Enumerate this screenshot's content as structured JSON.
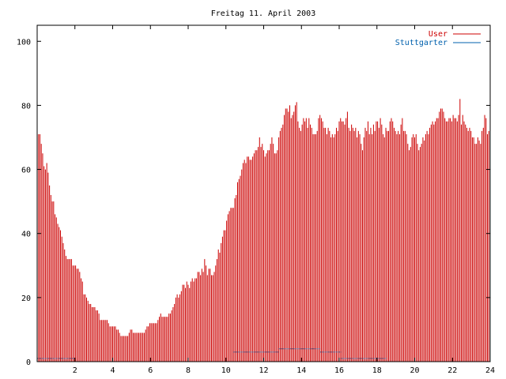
{
  "chart_data": {
    "type": "bar",
    "title": "Freitag 11. April 2003",
    "xlabel": "",
    "ylabel": "",
    "xlim": [
      0,
      24
    ],
    "ylim": [
      0,
      105
    ],
    "x_ticks": [
      2,
      4,
      6,
      8,
      10,
      12,
      14,
      16,
      18,
      20,
      22,
      24
    ],
    "y_ticks": [
      0,
      20,
      40,
      60,
      80,
      100
    ],
    "grid": false,
    "legend_position": "top-right",
    "colors": {
      "User": "#cc0000",
      "Stuttgarter": "#0060ad"
    },
    "series": [
      {
        "name": "User",
        "values": [
          76,
          71,
          71,
          68,
          65,
          61,
          60,
          62,
          59,
          55,
          52,
          50,
          50,
          46,
          45,
          43,
          42,
          41,
          39,
          37,
          35,
          33,
          32,
          32,
          32,
          32,
          30,
          30,
          30,
          29,
          29,
          28,
          26,
          25,
          21,
          21,
          20,
          19,
          18,
          18,
          17,
          17,
          17,
          16,
          16,
          15,
          13,
          13,
          13,
          13,
          13,
          13,
          12,
          11,
          11,
          11,
          11,
          11,
          10,
          10,
          9,
          8,
          8,
          8,
          8,
          8,
          8,
          9,
          10,
          10,
          9,
          9,
          9,
          9,
          9,
          9,
          9,
          9,
          9,
          10,
          11,
          11,
          12,
          12,
          12,
          12,
          12,
          12,
          13,
          14,
          15,
          14,
          14,
          14,
          14,
          14,
          15,
          15,
          16,
          17,
          18,
          20,
          21,
          20,
          21,
          22,
          24,
          24,
          23,
          25,
          24,
          23,
          25,
          26,
          25,
          26,
          26,
          28,
          28,
          27,
          29,
          28,
          32,
          30,
          27,
          29,
          29,
          27,
          27,
          28,
          30,
          32,
          35,
          34,
          37,
          39,
          41,
          41,
          44,
          46,
          47,
          48,
          48,
          48,
          51,
          52,
          56,
          57,
          58,
          60,
          62,
          63,
          62,
          64,
          64,
          63,
          63,
          64,
          65,
          66,
          66,
          67,
          70,
          67,
          68,
          66,
          64,
          65,
          66,
          66,
          68,
          70,
          68,
          65,
          65,
          66,
          70,
          72,
          73,
          74,
          77,
          79,
          79,
          78,
          80,
          76,
          77,
          78,
          80,
          81,
          75,
          73,
          72,
          74,
          76,
          75,
          76,
          73,
          76,
          74,
          73,
          71,
          71,
          71,
          72,
          76,
          77,
          76,
          75,
          73,
          73,
          71,
          73,
          72,
          70,
          71,
          70,
          71,
          73,
          72,
          75,
          76,
          75,
          75,
          74,
          76,
          78,
          73,
          72,
          74,
          73,
          72,
          73,
          70,
          72,
          71,
          68,
          66,
          70,
          73,
          72,
          75,
          71,
          73,
          71,
          74,
          72,
          75,
          75,
          73,
          76,
          74,
          71,
          70,
          73,
          72,
          72,
          75,
          76,
          75,
          73,
          72,
          71,
          72,
          71,
          74,
          76,
          72,
          72,
          71,
          68,
          66,
          67,
          70,
          71,
          70,
          71,
          68,
          66,
          67,
          68,
          70,
          69,
          71,
          72,
          71,
          73,
          74,
          75,
          74,
          75,
          76,
          76,
          78,
          79,
          79,
          78,
          76,
          75,
          75,
          76,
          76,
          75,
          77,
          76,
          76,
          75,
          77,
          82,
          74,
          77,
          75,
          74,
          73,
          72,
          73,
          72,
          70,
          70,
          68,
          68,
          70,
          69,
          68,
          72,
          73,
          77,
          76,
          71,
          72
        ]
      },
      {
        "name": "Stuttgarter",
        "segments": [
          {
            "x": [
              0,
              2
            ],
            "y": 1
          },
          {
            "x": [
              10.4,
              12.8
            ],
            "y": 3
          },
          {
            "x": [
              12.8,
              15.0
            ],
            "y": 4
          },
          {
            "x": [
              15.0,
              16.1
            ],
            "y": 3
          },
          {
            "x": [
              16.1,
              18.5
            ],
            "y": 1
          }
        ]
      }
    ]
  }
}
